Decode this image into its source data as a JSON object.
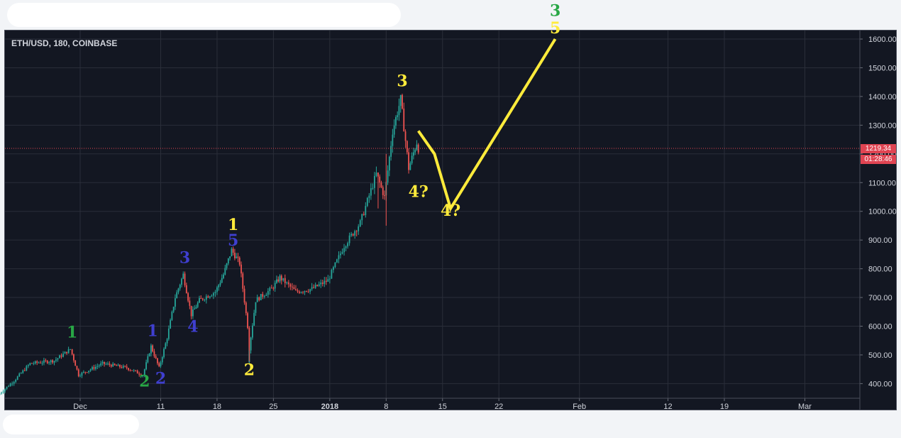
{
  "symbol_line": "ETH/USD, 180, COINBASE",
  "last_price_label": "1219.34",
  "countdown_label": "01:28:46",
  "colors": {
    "background": "#131722",
    "grid": "#2a2e39",
    "axis_text": "#d1d4dc",
    "up_candle": "#26a69a",
    "down_candle": "#ef5350",
    "projection": "#ffeb3b",
    "price_line": "#e04452",
    "wave_yellow": "#ffeb3b",
    "wave_blue": "#3f3fd0",
    "wave_green": "#28a745"
  },
  "chart_data": {
    "type": "candlestick",
    "title": "ETH/USD, 180, COINBASE",
    "x_axis_labels": [
      "Dec",
      "11",
      "18",
      "25",
      "2018",
      "8",
      "15",
      "22",
      "Feb",
      "12",
      "19",
      "Mar"
    ],
    "x_axis_dates": [
      "2017-12-01",
      "2017-12-11",
      "2017-12-18",
      "2017-12-25",
      "2018-01-01",
      "2018-01-08",
      "2018-01-15",
      "2018-01-22",
      "2018-02-01",
      "2018-02-12",
      "2018-02-19",
      "2018-03-01"
    ],
    "y_axis_labels": [
      "1600.00",
      "1500.00",
      "1400.00",
      "1300.00",
      "1200.00",
      "1100.00",
      "1000.00",
      "900.00",
      "800.00",
      "700.00",
      "600.00",
      "500.00",
      "400.00"
    ],
    "ylim": [
      345,
      1645
    ],
    "grid": true,
    "price_series_approx": [
      {
        "date": "2017-11-21",
        "price": 360
      },
      {
        "date": "2017-11-23",
        "price": 410
      },
      {
        "date": "2017-11-25",
        "price": 470
      },
      {
        "date": "2017-11-28",
        "price": 480
      },
      {
        "date": "2017-11-30",
        "price": 520
      },
      {
        "date": "2017-12-01",
        "price": 430
      },
      {
        "date": "2017-12-04",
        "price": 470
      },
      {
        "date": "2017-12-07",
        "price": 455
      },
      {
        "date": "2017-12-09",
        "price": 430
      },
      {
        "date": "2017-12-10",
        "price": 530
      },
      {
        "date": "2017-12-11",
        "price": 455
      },
      {
        "date": "2017-12-12",
        "price": 560
      },
      {
        "date": "2017-12-13",
        "price": 700
      },
      {
        "date": "2017-12-14",
        "price": 780
      },
      {
        "date": "2017-12-15",
        "price": 640
      },
      {
        "date": "2017-12-16",
        "price": 690
      },
      {
        "date": "2017-12-18",
        "price": 720
      },
      {
        "date": "2017-12-19",
        "price": 780
      },
      {
        "date": "2017-12-20",
        "price": 865
      },
      {
        "date": "2017-12-21",
        "price": 820
      },
      {
        "date": "2017-12-22",
        "price": 600
      },
      {
        "date": "2017-12-22",
        "price": 480
      },
      {
        "date": "2017-12-23",
        "price": 690
      },
      {
        "date": "2017-12-25",
        "price": 730
      },
      {
        "date": "2017-12-26",
        "price": 770
      },
      {
        "date": "2017-12-28",
        "price": 720
      },
      {
        "date": "2017-12-30",
        "price": 730
      },
      {
        "date": "2018-01-01",
        "price": 760
      },
      {
        "date": "2018-01-03",
        "price": 880
      },
      {
        "date": "2018-01-05",
        "price": 960
      },
      {
        "date": "2018-01-07",
        "price": 1130
      },
      {
        "date": "2018-01-08",
        "price": 1050
      },
      {
        "date": "2018-01-09",
        "price": 1280
      },
      {
        "date": "2018-01-10",
        "price": 1390
      },
      {
        "date": "2018-01-11",
        "price": 1150
      },
      {
        "date": "2018-01-12",
        "price": 1240
      },
      {
        "date": "2018-01-12",
        "price": 1219.34
      }
    ],
    "last_price": 1219.34,
    "projection_path": [
      {
        "date": "2018-01-12",
        "price": 1280
      },
      {
        "date": "2018-01-14",
        "price": 1200
      },
      {
        "date": "2018-01-16",
        "price": 1010
      },
      {
        "date": "2018-01-29",
        "price": 1600
      }
    ],
    "wave_labels": [
      {
        "text": "1",
        "color": "green",
        "date": "2017-11-30",
        "price": 560
      },
      {
        "text": "2",
        "color": "green",
        "date": "2017-12-09",
        "price": 390
      },
      {
        "text": "1",
        "color": "blue",
        "date": "2017-12-10",
        "price": 565
      },
      {
        "text": "2",
        "color": "blue",
        "date": "2017-12-11",
        "price": 400
      },
      {
        "text": "3",
        "color": "blue",
        "date": "2017-12-14",
        "price": 820
      },
      {
        "text": "4",
        "color": "blue",
        "date": "2017-12-15",
        "price": 580
      },
      {
        "text": "1",
        "color": "yellow",
        "date": "2017-12-20",
        "price": 935
      },
      {
        "text": "5",
        "color": "blue",
        "date": "2017-12-20",
        "price": 880
      },
      {
        "text": "2",
        "color": "yellow",
        "date": "2017-12-22",
        "price": 430
      },
      {
        "text": "3",
        "color": "yellow",
        "date": "2018-01-10",
        "price": 1435
      },
      {
        "text": "4?",
        "color": "yellow",
        "date": "2018-01-12",
        "price": 1050
      },
      {
        "text": "4?",
        "color": "yellow",
        "date": "2018-01-16",
        "price": 985
      },
      {
        "text": "3",
        "color": "green",
        "date": "2018-01-29",
        "price": 1680
      },
      {
        "text": "5",
        "color": "yellow",
        "date": "2018-01-29",
        "price": 1620
      }
    ]
  }
}
